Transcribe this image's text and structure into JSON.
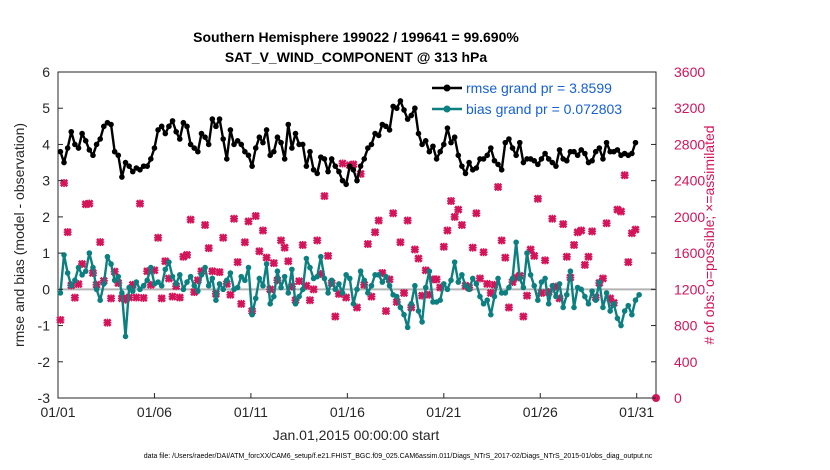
{
  "title_line1": "Southern Hemisphere 199022 / 199641 = 99.690%",
  "title_line2": "SAT_V_WIND_COMPONENT @ 313 hPa",
  "xlabel": "Jan.01,2015 00:00:00 start",
  "ylabel_left": "rmse and bias (model - observation)",
  "ylabel_right": "# of obs: o=possible; ×=assimilated",
  "datafile": "data file: /Users/raeder/DAI/ATM_forcXX/CAM6_setup/f.e21.FHIST_BGC.f09_025.CAM6assim.011/Diags_NTrS_2017-02/Diags_NTrS_2015-01/obs_diag_output.nc",
  "legend": {
    "rmse": "rmse grand pr = 3.8599",
    "bias": "bias grand pr = 0.072803"
  },
  "colors": {
    "rmse": "#000000",
    "bias": "#0c8080",
    "obs": "#d4145a",
    "zero": "#b3b3b3",
    "legend_text": "#1560d6"
  },
  "chart_data": {
    "type": "line",
    "x_ticks": [
      {
        "x": 0,
        "label": "01/01"
      },
      {
        "x": 5,
        "label": "01/06"
      },
      {
        "x": 10,
        "label": "01/11"
      },
      {
        "x": 15,
        "label": "01/16"
      },
      {
        "x": 20,
        "label": "01/21"
      },
      {
        "x": 25,
        "label": "01/26"
      },
      {
        "x": 30,
        "label": "01/31"
      }
    ],
    "xlim": [
      0,
      31
    ],
    "ylim_left": [
      -3,
      6
    ],
    "y_ticks_left": [
      -3,
      -2,
      -1,
      0,
      1,
      2,
      3,
      4,
      5,
      6
    ],
    "ylim_right": [
      0,
      3600
    ],
    "y_ticks_right": [
      0,
      400,
      800,
      1200,
      1600,
      2000,
      2400,
      2800,
      3200,
      3600
    ],
    "series": [
      {
        "name": "rmse grand pr = 3.8599",
        "axis": "left",
        "marker": "dot",
        "values": [
          3.8,
          3.5,
          3.9,
          4.35,
          4.0,
          3.9,
          4.3,
          4.1,
          3.85,
          3.7,
          4.0,
          4.15,
          4.5,
          4.6,
          4.55,
          3.8,
          3.7,
          3.1,
          3.5,
          3.4,
          3.25,
          3.35,
          3.3,
          3.4,
          3.4,
          3.6,
          3.9,
          4.4,
          4.5,
          4.3,
          4.5,
          4.65,
          4.35,
          4.15,
          4.6,
          4.5,
          4.0,
          3.9,
          3.8,
          4.3,
          4.2,
          4.0,
          4.7,
          4.5,
          4.7,
          4.15,
          3.6,
          4.4,
          4.0,
          4.1,
          4.0,
          3.8,
          3.7,
          3.4,
          3.9,
          4.2,
          4.05,
          4.4,
          3.7,
          3.8,
          4.2,
          4.05,
          3.6,
          4.55,
          3.9,
          4.3,
          4.0,
          4.0,
          3.4,
          3.8,
          3.3,
          3.2,
          3.65,
          3.6,
          3.25,
          3.6,
          3.4,
          3.25,
          3.0,
          2.9,
          3.4,
          3.3,
          3.0,
          3.4,
          3.6,
          3.9,
          4.0,
          4.3,
          4.25,
          4.55,
          4.5,
          4.4,
          5.05,
          5.0,
          5.2,
          4.95,
          4.7,
          4.8,
          5.0,
          4.3,
          4.0,
          4.1,
          3.8,
          3.95,
          3.6,
          3.8,
          4.0,
          4.45,
          4.05,
          4.2,
          3.7,
          3.4,
          3.2,
          3.5,
          3.3,
          3.35,
          3.6,
          3.6,
          3.7,
          3.9,
          3.55,
          3.45,
          3.3,
          4.05,
          4.15,
          3.9,
          3.7,
          4.05,
          3.5,
          3.6,
          3.6,
          3.55,
          3.45,
          3.6,
          3.75,
          3.6,
          3.5,
          3.4,
          3.85,
          3.6,
          3.55,
          3.8,
          3.8,
          3.7,
          3.85,
          3.75,
          3.5,
          3.55,
          3.8,
          3.9,
          3.6,
          4.05,
          3.8,
          3.8,
          3.85,
          3.7,
          3.75,
          3.7,
          3.75,
          4.05
        ]
      },
      {
        "name": "bias grand pr = 0.072803",
        "axis": "left",
        "marker": "dot",
        "values": [
          -0.1,
          0.95,
          0.45,
          0.1,
          0.25,
          0.6,
          0.4,
          0.5,
          1.0,
          0.6,
          0.0,
          -0.3,
          0.15,
          0.9,
          0.7,
          0.25,
          0.35,
          -0.1,
          -1.3,
          0.05,
          -0.05,
          0.2,
          0.0,
          0.1,
          0.25,
          0.6,
          0.15,
          0.2,
          0.1,
          0.55,
          0.75,
          0.35,
          0.15,
          0.4,
          0.0,
          0.2,
          0.35,
          0.1,
          -0.05,
          0.4,
          0.6,
          0.1,
          0.3,
          -0.3,
          0.15,
          0.0,
          0.25,
          0.45,
          0.0,
          0.05,
          0.35,
          0.25,
          0.6,
          -0.7,
          -0.25,
          0.3,
          0.1,
          0.7,
          -0.4,
          -0.2,
          0.5,
          0.05,
          0.35,
          -0.1,
          0.55,
          -0.4,
          -0.2,
          0.0,
          0.85,
          0.6,
          0.3,
          0.35,
          0.9,
          0.3,
          -0.1,
          0.25,
          0.0,
          0.15,
          -0.1,
          0.4,
          0.3,
          -0.4,
          0.0,
          0.5,
          0.25,
          -0.1,
          0.1,
          0.4,
          0.4,
          0.2,
          0.35,
          0.1,
          -0.15,
          -0.2,
          -0.5,
          -0.7,
          -1.05,
          -0.4,
          0.1,
          -0.6,
          -0.9,
          0.05,
          0.5,
          -0.35,
          -0.35,
          -0.3,
          0.15,
          0.0,
          0.25,
          0.75,
          0.2,
          0.4,
          0.1,
          0.0,
          0.3,
          0.15,
          -0.2,
          -0.4,
          -0.3,
          -0.7,
          -0.2,
          0.3,
          -0.1,
          -0.1,
          0.05,
          0.3,
          1.3,
          0.3,
          0.05,
          1.0,
          0.4,
          0.1,
          -0.3,
          0.2,
          0.3,
          -0.4,
          0.1,
          -0.2,
          0.15,
          -0.5,
          -0.15,
          0.5,
          -0.5,
          0.05,
          0.0,
          -0.2,
          -0.4,
          -0.05,
          -0.3,
          0.2,
          -0.5,
          -0.1,
          -0.6,
          -0.4,
          -0.8,
          -1.0,
          -0.6,
          -0.45,
          -0.7,
          -0.3,
          -0.15
        ]
      },
      {
        "name": "",
        "axis": "right",
        "marker": "x",
        "values": [
          862,
          2374,
          1832,
          1244,
          1108,
          1258,
          1480,
          2140,
          2147,
          1380,
          1250,
          1721,
          1294,
          832,
          1100,
          1395,
          1270,
          1100,
          1085,
          1110,
          1250,
          1110,
          2147,
          1105,
          1400,
          1250,
          1410,
          1770,
          1100,
          1510,
          1320,
          1120,
          1235,
          1110,
          1560,
          1580,
          1970,
          1170,
          1300,
          1400,
          1910,
          1655,
          1400,
          1150,
          1390,
          1770,
          1260,
          1140,
          1980,
          1500,
          1040,
          1720,
          1950,
          960,
          2010,
          1620,
          1850,
          1550,
          1200,
          1490,
          1300,
          1740,
          1660,
          1510,
          1230,
          1080,
          1290,
          1690,
          1240,
          1080,
          1200,
          1740,
          1370,
          2230,
          1570,
          1270,
          900,
          1150,
          2590,
          1110,
          2570,
          2580,
          1000,
          2475,
          1250,
          1700,
          1120,
          1830,
          1960,
          1380,
          960,
          1310,
          2040,
          1060,
          1720,
          1160,
          1960,
          1000,
          1640,
          1540,
          1130,
          1410,
          1140,
          1310,
          1310,
          1220,
          1670,
          1850,
          2175,
          2000,
          2080,
          1910,
          1240,
          1220,
          1660,
          2040,
          1320,
          1610,
          1260,
          1160,
          1250,
          2330,
          1740,
          1550,
          1000,
          1280,
          1330,
          1350,
          900,
          1130,
          1640,
          1570,
          2200,
          1160,
          1520,
          1170,
          1980,
          1230,
          1100,
          1920,
          1560,
          1330,
          1690,
          1830,
          1850,
          1470,
          1560,
          1840,
          1110,
          1270,
          1320,
          1930,
          1100,
          1050,
          2080,
          2060,
          2460,
          1500,
          1820,
          1860
        ]
      }
    ],
    "grid": false,
    "legend_position": "top-right"
  }
}
